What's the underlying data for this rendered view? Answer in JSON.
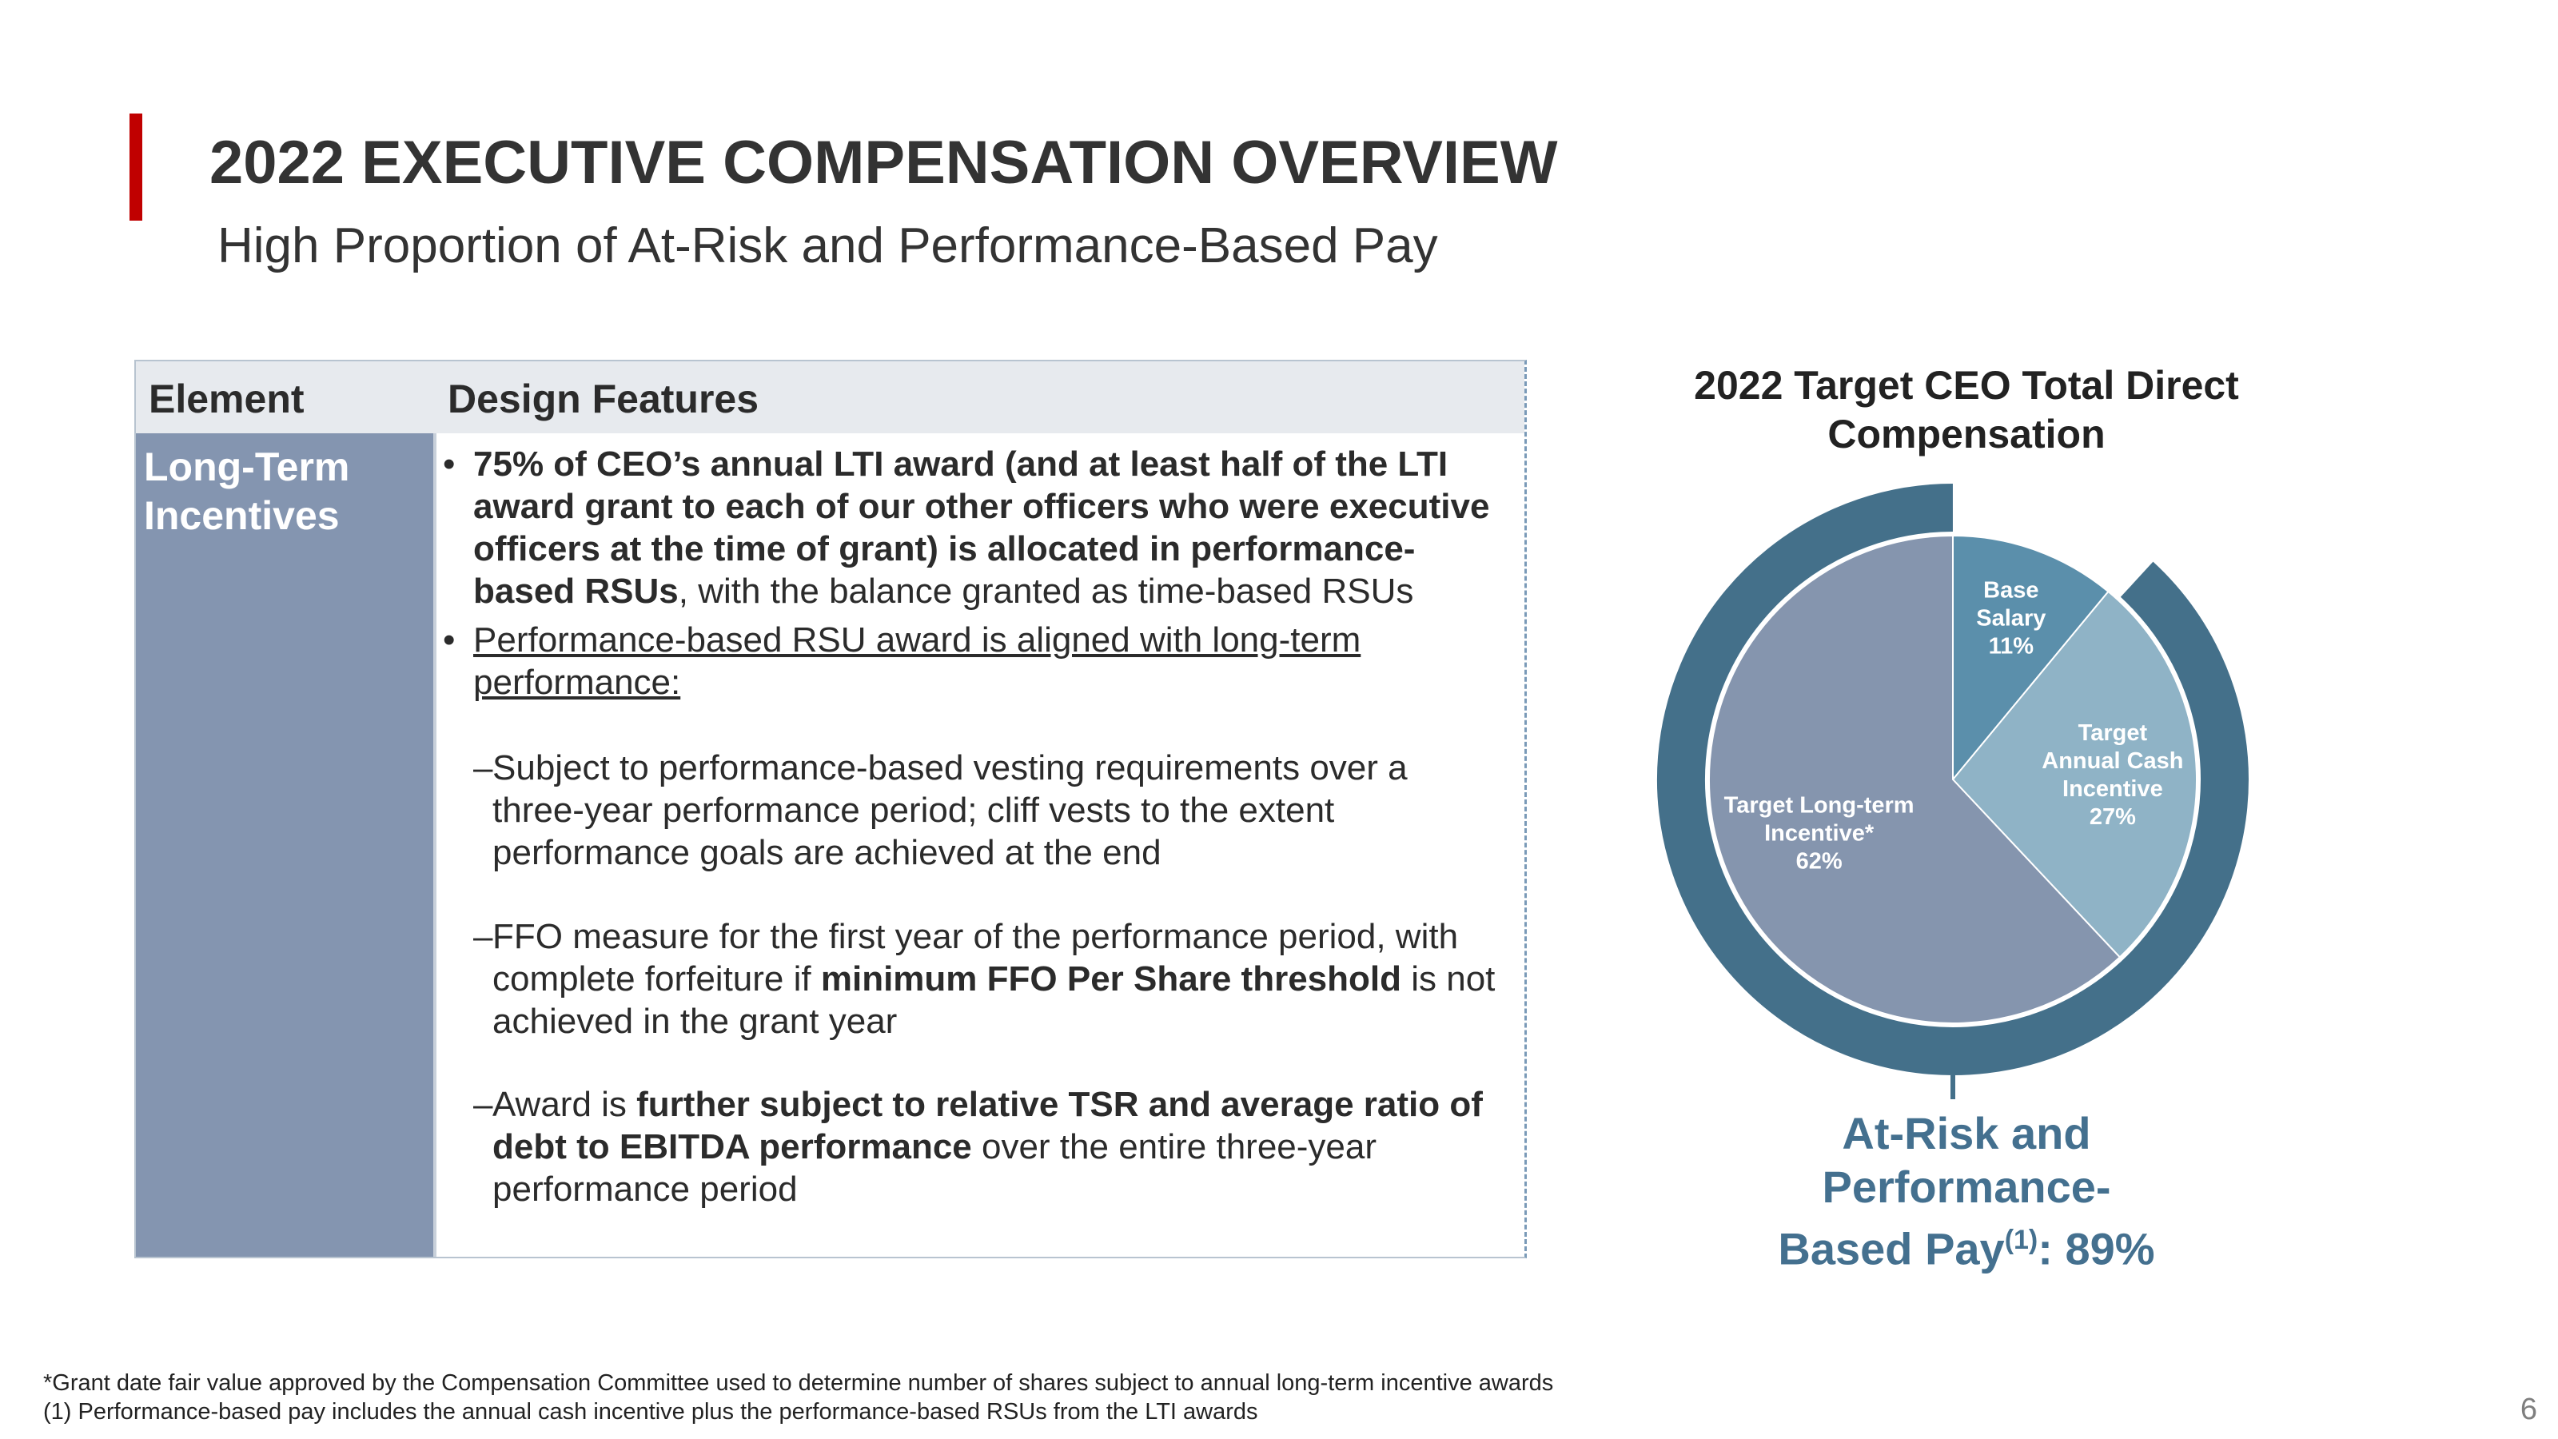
{
  "header": {
    "title": "2022 EXECUTIVE COMPENSATION OVERVIEW",
    "subtitle": "High Proportion of At-Risk and Performance-Based Pay"
  },
  "table": {
    "headers": {
      "element": "Element",
      "design": "Design Features"
    },
    "row": {
      "element_line1": "Long-Term",
      "element_line2": "Incentives",
      "bullet1": {
        "bold": "75% of CEO’s annual LTI award (and at least half of the LTI award grant to each of our other officers who were executive officers at the time of grant) is allocated in performance-based RSUs",
        "rest": ", with the balance granted as time-based RSUs"
      },
      "bullet2": "Performance-based RSU award is aligned with long-term performance:",
      "sub1": "Subject to performance-based vesting requirements over a three-year performance period; cliff vests to the extent performance goals are achieved at the end",
      "sub2": {
        "pre": "FFO measure for the first year of the performance period, with complete forfeiture if ",
        "bold": "minimum FFO Per Share threshold",
        "post": " is not achieved in the grant year"
      },
      "sub3": {
        "pre": "Award is ",
        "bold": "further subject to relative TSR and average ratio of debt to EBITDA performance",
        "post": " over the entire three-year performance period"
      },
      "bullet_char": "•",
      "dash_char": "–"
    }
  },
  "chart_data": {
    "type": "pie",
    "title": "2022 Target CEO Total Direct Compensation",
    "slices": [
      {
        "label_lines": [
          "Base",
          "Salary"
        ],
        "value": 11,
        "display": "11%",
        "color": "#5b8fab"
      },
      {
        "label_lines": [
          "Target",
          "Annual Cash",
          "Incentive"
        ],
        "value": 27,
        "display": "27%",
        "color": "#8fb3c6"
      },
      {
        "label_lines": [
          "Target Long-term",
          "Incentive*"
        ],
        "value": 62,
        "display": "62%",
        "color": "#8595ae"
      }
    ],
    "ring_color": "#44708a",
    "at_risk_share": 89,
    "annotation": {
      "line1": "At-Risk and",
      "line2": "Performance-",
      "line3_pre": "Based Pay",
      "line3_sup": "(1)",
      "line3_post": ": 89%"
    }
  },
  "footnotes": {
    "f1": "*Grant date fair value approved by the Compensation Committee used to determine number of shares subject to annual long-term incentive awards",
    "f2": "(1) Performance-based pay includes the annual cash incentive plus the performance-based RSUs from the LTI awards"
  },
  "page_number": "6"
}
